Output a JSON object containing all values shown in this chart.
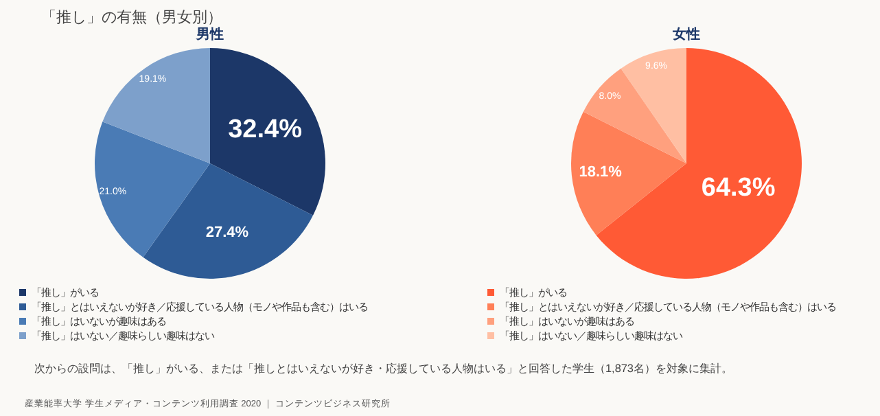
{
  "chart_data": [
    {
      "type": "pie",
      "title": "「推し」の有無（男女別）",
      "subtitle": "男性",
      "categories": [
        "「推し」がいる",
        "「推し」とはいえないが好き／応援している人物（モノや作品も含む）はいる",
        "「推し」はいないが趣味はある",
        "「推し」はいない／趣味らしい趣味はない"
      ],
      "values": [
        32.4,
        27.4,
        21.0,
        19.1
      ],
      "value_labels": [
        "32.4%",
        "27.4%",
        "21.0%",
        "19.1%"
      ],
      "colors": [
        "#1c3768",
        "#2e5b95",
        "#4a7bb5",
        "#7da0cb"
      ],
      "legend": "bottom",
      "annotations": [
        "次からの設問は、「推し」がいる、または「推しとはいえないが好き・応援している人物はいる」と回答した学生（1,873名）を対象に集計。",
        "産業能率大学 学生メディア・コンテンツ利用調査 2020 ｜ コンテンツビジネス研究所"
      ]
    },
    {
      "type": "pie",
      "title": "女性",
      "categories": [
        "「推し」がいる",
        "「推し」とはいえないが好き／応援している人物（モノや作品も含む）はいる",
        "「推し」はいないが趣味はある",
        "「推し」はいない／趣味らしい趣味はない"
      ],
      "values": [
        64.3,
        18.1,
        8.0,
        9.6
      ],
      "value_labels": [
        "64.3%",
        "18.1%",
        "8.0%",
        "9.6%"
      ],
      "colors": [
        "#ff5a35",
        "#ff7f57",
        "#ffa07e",
        "#ffbfa3"
      ],
      "legend": "bottom"
    }
  ]
}
